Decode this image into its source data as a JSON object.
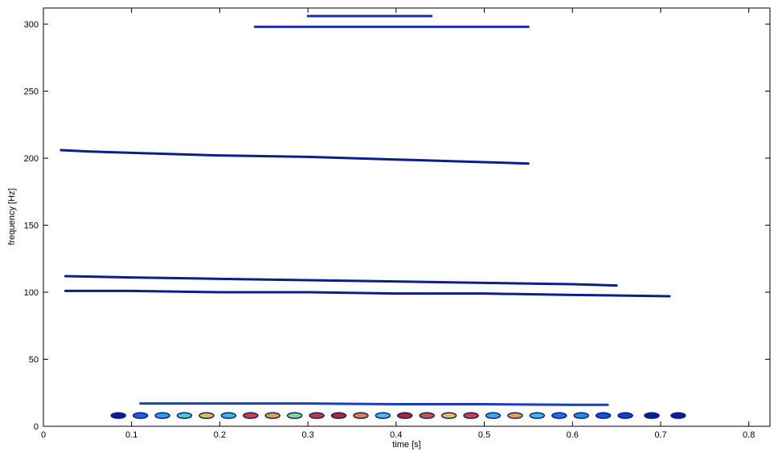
{
  "chart_data": {
    "type": "contour",
    "x_label": "time [s]",
    "y_label": "frequency [Hz]",
    "xlim": [
      0,
      0.824
    ],
    "ylim": [
      0,
      312
    ],
    "xticks": [
      0,
      0.1,
      0.2,
      0.3,
      0.4,
      0.5,
      0.6,
      0.7,
      0.8
    ],
    "yticks": [
      0,
      50,
      100,
      150,
      200,
      250,
      300
    ],
    "series": [
      {
        "color": "#1a2fa8",
        "x": [
          0.24,
          0.3,
          0.35,
          0.4,
          0.45,
          0.5,
          0.55
        ],
        "values": [
          298,
          298,
          298,
          298,
          298,
          298,
          298
        ]
      },
      {
        "color": "#1a2fa8",
        "x": [
          0.3,
          0.35,
          0.4,
          0.44
        ],
        "values": [
          306,
          306,
          306,
          306
        ]
      },
      {
        "color": "#0a1e8c",
        "x": [
          0.02,
          0.05,
          0.1,
          0.2,
          0.3,
          0.4,
          0.5,
          0.55
        ],
        "values": [
          206,
          205,
          204,
          202,
          201,
          199,
          197,
          196
        ]
      },
      {
        "color": "#0a1e8c",
        "x": [
          0.025,
          0.1,
          0.2,
          0.3,
          0.4,
          0.5,
          0.6,
          0.65
        ],
        "values": [
          112,
          111,
          110,
          109,
          108,
          107,
          106,
          105
        ]
      },
      {
        "color": "#0a1e8c",
        "x": [
          0.025,
          0.1,
          0.2,
          0.3,
          0.4,
          0.5,
          0.6,
          0.71
        ],
        "values": [
          101,
          101,
          100,
          100,
          99,
          99,
          98,
          97
        ]
      },
      {
        "color": "#1740c0",
        "x": [
          0.11,
          0.2,
          0.3,
          0.4,
          0.5,
          0.6,
          0.64
        ],
        "values": [
          17,
          17,
          17,
          16.5,
          16.5,
          16,
          16
        ]
      },
      {
        "color": "#0a1e8c",
        "marker": "ellipse",
        "x": [
          0.085,
          0.11,
          0.135,
          0.16,
          0.185,
          0.21,
          0.235,
          0.26,
          0.285,
          0.31,
          0.335,
          0.36,
          0.385,
          0.41,
          0.435,
          0.46,
          0.485,
          0.51,
          0.535,
          0.56,
          0.585,
          0.61,
          0.635,
          0.66,
          0.69,
          0.72
        ],
        "values": [
          8,
          8,
          8,
          8,
          8,
          8,
          8,
          8,
          8,
          8,
          8,
          8,
          8,
          8,
          8,
          8,
          8,
          8,
          8,
          8,
          8,
          8,
          8,
          8,
          8,
          8
        ],
        "colors": [
          "#0a1e8c",
          "#1f5fe0",
          "#2aa0e0",
          "#40d0c0",
          "#f0c020",
          "#30c0d0",
          "#e04020",
          "#f0a020",
          "#80e060",
          "#e03020",
          "#d02010",
          "#f08020",
          "#40c0e0",
          "#c02010",
          "#e05020",
          "#f0c030",
          "#e04020",
          "#30b0e0",
          "#f0a030",
          "#40c0c0",
          "#1f6fe0",
          "#2090e0",
          "#1a50d0",
          "#1a40c0",
          "#0a1e8c",
          "#0a1e8c"
        ]
      }
    ]
  }
}
